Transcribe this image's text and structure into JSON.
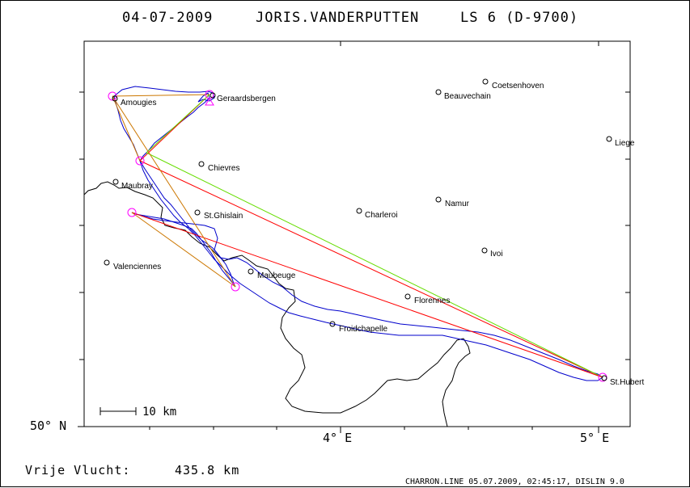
{
  "header": {
    "date": "04-07-2009",
    "pilot": "JORIS.VANDERPUTTEN",
    "glider": "LS 6 (D-9700)"
  },
  "axes": {
    "lat_label": "50° N",
    "lon_labels": [
      "4° E",
      "5° E"
    ]
  },
  "scale": {
    "label": "10 km"
  },
  "distance": {
    "label": "Vrije Vlucht:",
    "value": "435.8 km"
  },
  "footer": {
    "credit": "CHARRON.LINE 05.07.2009, 02:45:17, DISLIN 9.0"
  },
  "places": [
    {
      "name": "Geraardsbergen"
    },
    {
      "name": "Amougies"
    },
    {
      "name": "Coetsenhoven"
    },
    {
      "name": "Beauvechain"
    },
    {
      "name": "Liege"
    },
    {
      "name": "Chievres"
    },
    {
      "name": "Maubray"
    },
    {
      "name": "Namur"
    },
    {
      "name": "Charleroi"
    },
    {
      "name": "St.Ghislain"
    },
    {
      "name": "Ivoi"
    },
    {
      "name": "Valenciennes"
    },
    {
      "name": "Maubeuge"
    },
    {
      "name": "Florennes"
    },
    {
      "name": "Froidchapelle"
    },
    {
      "name": "St.Hubert"
    }
  ],
  "colors": {
    "track": "#0000cc",
    "route_red": "#ff0000",
    "route_green": "#66dd00",
    "route_orange": "#cc7700",
    "turnpoint": "#ff00ff",
    "border": "#000000"
  }
}
